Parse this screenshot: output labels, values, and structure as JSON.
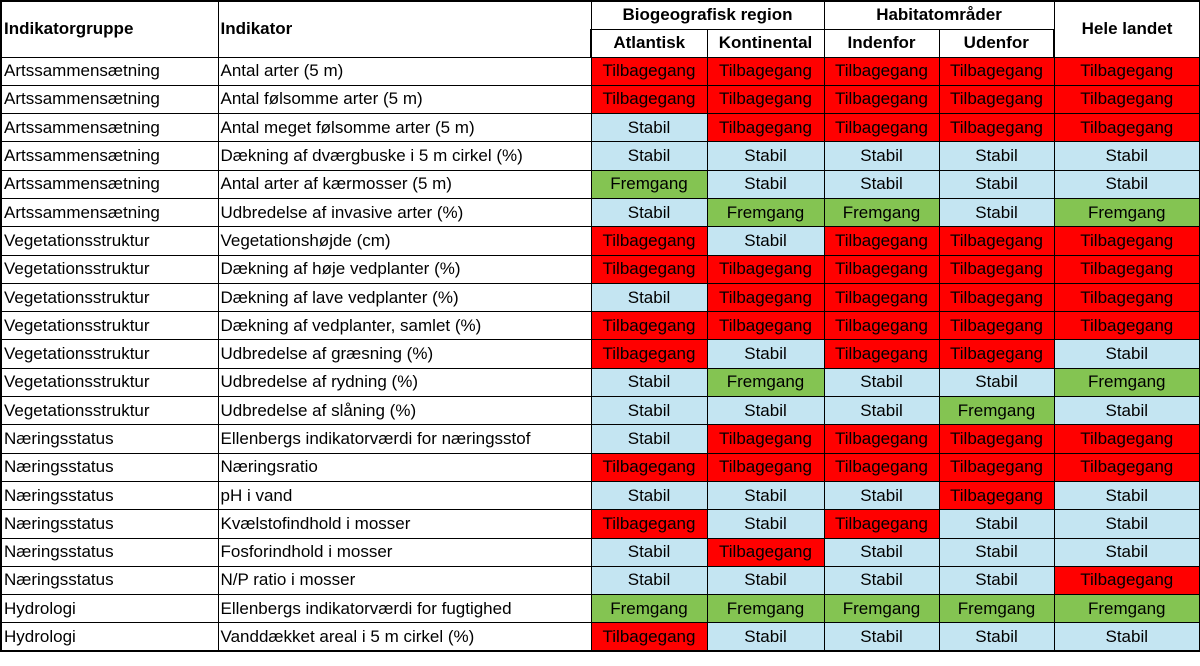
{
  "headers": {
    "group": "Indikatorgruppe",
    "indicator": "Indikator",
    "biogeo": "Biogeografisk region",
    "atlantic": "Atlantisk",
    "continental": "Kontinental",
    "habitat": "Habitatområder",
    "inside": "Indenfor",
    "outside": "Udenfor",
    "whole": "Hele landet"
  },
  "status_colors": {
    "Tilbagegang": "#ff0000",
    "Stabil": "#c4e5f2",
    "Fremgang": "#84c452"
  },
  "rows": [
    {
      "group": "Artssammensætning",
      "indicator": "Antal arter (5 m)",
      "values": [
        "Tilbagegang",
        "Tilbagegang",
        "Tilbagegang",
        "Tilbagegang",
        "Tilbagegang"
      ]
    },
    {
      "group": "Artssammensætning",
      "indicator": "Antal følsomme arter (5 m)",
      "values": [
        "Tilbagegang",
        "Tilbagegang",
        "Tilbagegang",
        "Tilbagegang",
        "Tilbagegang"
      ]
    },
    {
      "group": "Artssammensætning",
      "indicator": "Antal meget følsomme arter (5 m)",
      "values": [
        "Stabil",
        "Tilbagegang",
        "Tilbagegang",
        "Tilbagegang",
        "Tilbagegang"
      ]
    },
    {
      "group": "Artssammensætning",
      "indicator": "Dækning af dværgbuske i 5 m cirkel (%)",
      "values": [
        "Stabil",
        "Stabil",
        "Stabil",
        "Stabil",
        "Stabil"
      ]
    },
    {
      "group": "Artssammensætning",
      "indicator": "Antal arter af kærmosser (5 m)",
      "values": [
        "Fremgang",
        "Stabil",
        "Stabil",
        "Stabil",
        "Stabil"
      ]
    },
    {
      "group": "Artssammensætning",
      "indicator": "Udbredelse af invasive arter (%)",
      "values": [
        "Stabil",
        "Fremgang",
        "Fremgang",
        "Stabil",
        "Fremgang"
      ]
    },
    {
      "group": "Vegetationsstruktur",
      "indicator": "Vegetationshøjde (cm)",
      "values": [
        "Tilbagegang",
        "Stabil",
        "Tilbagegang",
        "Tilbagegang",
        "Tilbagegang"
      ]
    },
    {
      "group": "Vegetationsstruktur",
      "indicator": "Dækning af høje vedplanter (%)",
      "values": [
        "Tilbagegang",
        "Tilbagegang",
        "Tilbagegang",
        "Tilbagegang",
        "Tilbagegang"
      ]
    },
    {
      "group": "Vegetationsstruktur",
      "indicator": "Dækning af lave vedplanter (%)",
      "values": [
        "Stabil",
        "Tilbagegang",
        "Tilbagegang",
        "Tilbagegang",
        "Tilbagegang"
      ]
    },
    {
      "group": "Vegetationsstruktur",
      "indicator": "Dækning af vedplanter, samlet (%)",
      "values": [
        "Tilbagegang",
        "Tilbagegang",
        "Tilbagegang",
        "Tilbagegang",
        "Tilbagegang"
      ]
    },
    {
      "group": "Vegetationsstruktur",
      "indicator": "Udbredelse af græsning (%)",
      "values": [
        "Tilbagegang",
        "Stabil",
        "Tilbagegang",
        "Tilbagegang",
        "Stabil"
      ]
    },
    {
      "group": "Vegetationsstruktur",
      "indicator": "Udbredelse af rydning (%)",
      "values": [
        "Stabil",
        "Fremgang",
        "Stabil",
        "Stabil",
        "Fremgang"
      ]
    },
    {
      "group": "Vegetationsstruktur",
      "indicator": "Udbredelse af slåning (%)",
      "values": [
        "Stabil",
        "Stabil",
        "Stabil",
        "Fremgang",
        "Stabil"
      ]
    },
    {
      "group": "Næringsstatus",
      "indicator": "Ellenbergs indikatorværdi for næringsstof",
      "values": [
        "Stabil",
        "Tilbagegang",
        "Tilbagegang",
        "Tilbagegang",
        "Tilbagegang"
      ]
    },
    {
      "group": "Næringsstatus",
      "indicator": "Næringsratio",
      "values": [
        "Tilbagegang",
        "Tilbagegang",
        "Tilbagegang",
        "Tilbagegang",
        "Tilbagegang"
      ]
    },
    {
      "group": "Næringsstatus",
      "indicator": "pH i vand",
      "values": [
        "Stabil",
        "Stabil",
        "Stabil",
        "Tilbagegang",
        "Stabil"
      ]
    },
    {
      "group": "Næringsstatus",
      "indicator": "Kvælstofindhold i mosser",
      "values": [
        "Tilbagegang",
        "Stabil",
        "Tilbagegang",
        "Stabil",
        "Stabil"
      ]
    },
    {
      "group": "Næringsstatus",
      "indicator": "Fosforindhold i mosser",
      "values": [
        "Stabil",
        "Tilbagegang",
        "Stabil",
        "Stabil",
        "Stabil"
      ]
    },
    {
      "group": "Næringsstatus",
      "indicator": "N/P ratio i mosser",
      "values": [
        "Stabil",
        "Stabil",
        "Stabil",
        "Stabil",
        "Tilbagegang"
      ]
    },
    {
      "group": "Hydrologi",
      "indicator": "Ellenbergs indikatorværdi for fugtighed",
      "values": [
        "Fremgang",
        "Fremgang",
        "Fremgang",
        "Fremgang",
        "Fremgang"
      ]
    },
    {
      "group": "Hydrologi",
      "indicator": "Vanddækket areal i 5 m cirkel (%)",
      "values": [
        "Tilbagegang",
        "Stabil",
        "Stabil",
        "Stabil",
        "Stabil"
      ]
    }
  ]
}
